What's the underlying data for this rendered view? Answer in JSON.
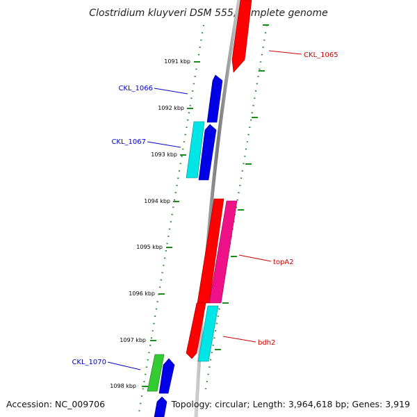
{
  "title": "Clostridium kluyveri DSM 555, complete genome",
  "footer": {
    "accession": "Accession: NC_009706",
    "summary": "Topology: circular; Length: 3,964,618 bp; Genes: 3,919"
  },
  "ticks": [
    "1091 kbp",
    "1092 kbp",
    "1093 kbp",
    "1094 kbp",
    "1095 kbp",
    "1096 kbp",
    "1097 kbp",
    "1098 kbp"
  ],
  "genes": [
    {
      "name": "CKL_1065",
      "strand": "forward",
      "color": "#ff0000",
      "label_color": "#cc0000"
    },
    {
      "name": "CKL_1066",
      "strand": "reverse",
      "color": "#0000e6",
      "label_color": "#0000cc"
    },
    {
      "name": "CKL_1067",
      "strand": "reverse",
      "color": "#00e5e5",
      "label_color": "#0000cc"
    },
    {
      "name": "",
      "strand": "reverse",
      "color": "#0000e6",
      "label_color": "#0000cc"
    },
    {
      "name": "",
      "strand": "reverse",
      "color": "#ff0000",
      "label_color": "#cc0000"
    },
    {
      "name": "topA2",
      "strand": "forward",
      "color": "#ee1188",
      "label_color": "#cc0000"
    },
    {
      "name": "",
      "strand": "reverse",
      "color": "#ff0000",
      "label_color": "#cc0000"
    },
    {
      "name": "bdh2",
      "strand": "forward",
      "color": "#00e5e5",
      "label_color": "#cc0000"
    },
    {
      "name": "CKL_1070",
      "strand": "reverse",
      "color": "#33cc33",
      "label_color": "#0000cc"
    },
    {
      "name": "",
      "strand": "reverse",
      "color": "#0000e6",
      "label_color": "#0000cc"
    },
    {
      "name": "",
      "strand": "reverse",
      "color": "#0000e6",
      "label_color": "#0000cc"
    }
  ],
  "colors": {
    "backbone": "#8c8c8c",
    "tick_dots": "#1a8a1a",
    "forward_label": "#cc0000",
    "reverse_label": "#0000cc"
  }
}
